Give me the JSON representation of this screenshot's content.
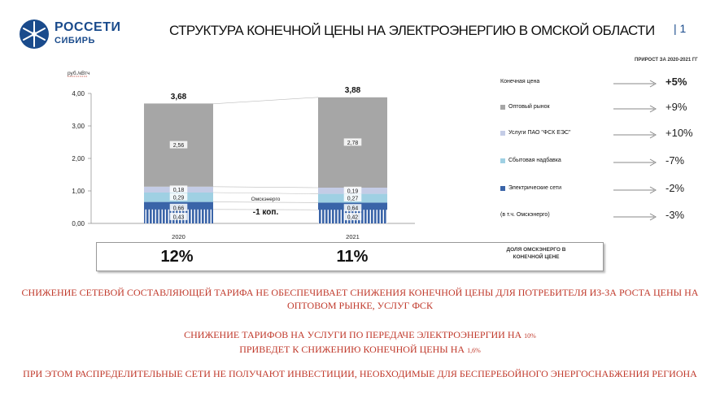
{
  "logo": {
    "line1": "РОССЕТИ",
    "line2": "СИБИРЬ",
    "color": "#1a4b8c"
  },
  "title": "СТРУКТУРА КОНЕЧНОЙ ЦЕНЫ НА ЭЛЕКТРОЭНЕРГИЮ В ОМСКОЙ ОБЛАСТИ",
  "page_number": "| 1",
  "growth_header": "ПРИРОСТ ЗА 2020-2021 ГГ",
  "chart_data": {
    "type": "bar",
    "stacked": true,
    "ylabel": "руб./кВтч",
    "ylim": [
      0,
      4
    ],
    "yticks": [
      "0,00",
      "1,00",
      "2,00",
      "3,00",
      "4,00"
    ],
    "categories": [
      "2020",
      "2021"
    ],
    "totals": [
      "3,68",
      "3,88"
    ],
    "totals_values": [
      3.68,
      3.88
    ],
    "series": [
      {
        "name": "Электрические сети",
        "values": [
          0.66,
          0.64
        ],
        "labels": [
          "0,66",
          "0,64"
        ],
        "color": "#3a64a8"
      },
      {
        "name": "Сбытовая надбавка",
        "values": [
          0.29,
          0.27
        ],
        "labels": [
          "0,29",
          "0,27"
        ],
        "color": "#9fd0e3"
      },
      {
        "name": "Услуги ПАО \"ФСК ЕЭС\"",
        "values": [
          0.18,
          0.19
        ],
        "labels": [
          "0,18",
          "0,19"
        ],
        "color": "#c4cce6"
      },
      {
        "name": "Оптовый рынок",
        "values": [
          2.56,
          2.78
        ],
        "labels": [
          "2,56",
          "2,78"
        ],
        "color": "#a6a6a6"
      }
    ],
    "subseries": {
      "name": "(в т.ч. Омскэнерго)",
      "values": [
        0.43,
        0.42
      ],
      "labels": [
        "0,43",
        "0,42"
      ]
    },
    "annotation": {
      "label": "Омскэнерго",
      "value": "-1 коп."
    },
    "share": {
      "label": "ДОЛЯ ОМСКЭНЕРГО В КОНЕЧНОЙ ЦЕНЕ",
      "values": [
        "12%",
        "11%"
      ]
    }
  },
  "legend": [
    {
      "label": "Конечная цена",
      "color": "",
      "growth": "+5%",
      "bold": true
    },
    {
      "label": "Оптовый рынок",
      "color": "#a6a6a6",
      "growth": "+9%",
      "bold": false
    },
    {
      "label": "Услуги ПАО \"ФСК ЕЭС\"",
      "color": "#c4cce6",
      "growth": "+10%",
      "bold": false
    },
    {
      "label": "Сбытовая надбавка",
      "color": "#9fd0e3",
      "growth": "-7%",
      "bold": false
    },
    {
      "label": "Электрические сети",
      "color": "#3a64a8",
      "growth": "-2%",
      "bold": false
    },
    {
      "label": "(в т.ч. Омскэнерго)",
      "color": "",
      "growth": "-3%",
      "bold": false
    }
  ],
  "bottom": {
    "line1": "СНИЖЕНИЕ СЕТЕВОЙ СОСТАВЛЯЮЩЕЙ ТАРИФА НЕ ОБЕСПЕЧИВАЕТ СНИЖЕНИЯ КОНЕЧНОЙ ЦЕНЫ ДЛЯ ПОТРЕБИТЕЛЯ ИЗ-ЗА РОСТА ЦЕНЫ НА ОПТОВОМ РЫНКЕ, УСЛУГ ФСК",
    "line2a": "СНИЖЕНИЕ ТАРИФОВ НА УСЛУГИ ПО ПЕРЕДАЧЕ ЭЛЕКТРОЭНЕРГИИ НА ",
    "line2a_pct": "10%",
    "line2b": "ПРИВЕДЕТ К СНИЖЕНИЮ КОНЕЧНОЙ ЦЕНЫ НА ",
    "line2b_pct": "1,6%",
    "line3": "ПРИ ЭТОМ РАСПРЕДЕЛИТЕЛЬНЫЕ СЕТИ НЕ ПОЛУЧАЮТ ИНВЕСТИЦИИ, НЕОБХОДИМЫЕ ДЛЯ БЕСПЕРЕБОЙНОГО ЭНЕРГОСНАБЖЕНИЯ РЕГИОНА"
  }
}
